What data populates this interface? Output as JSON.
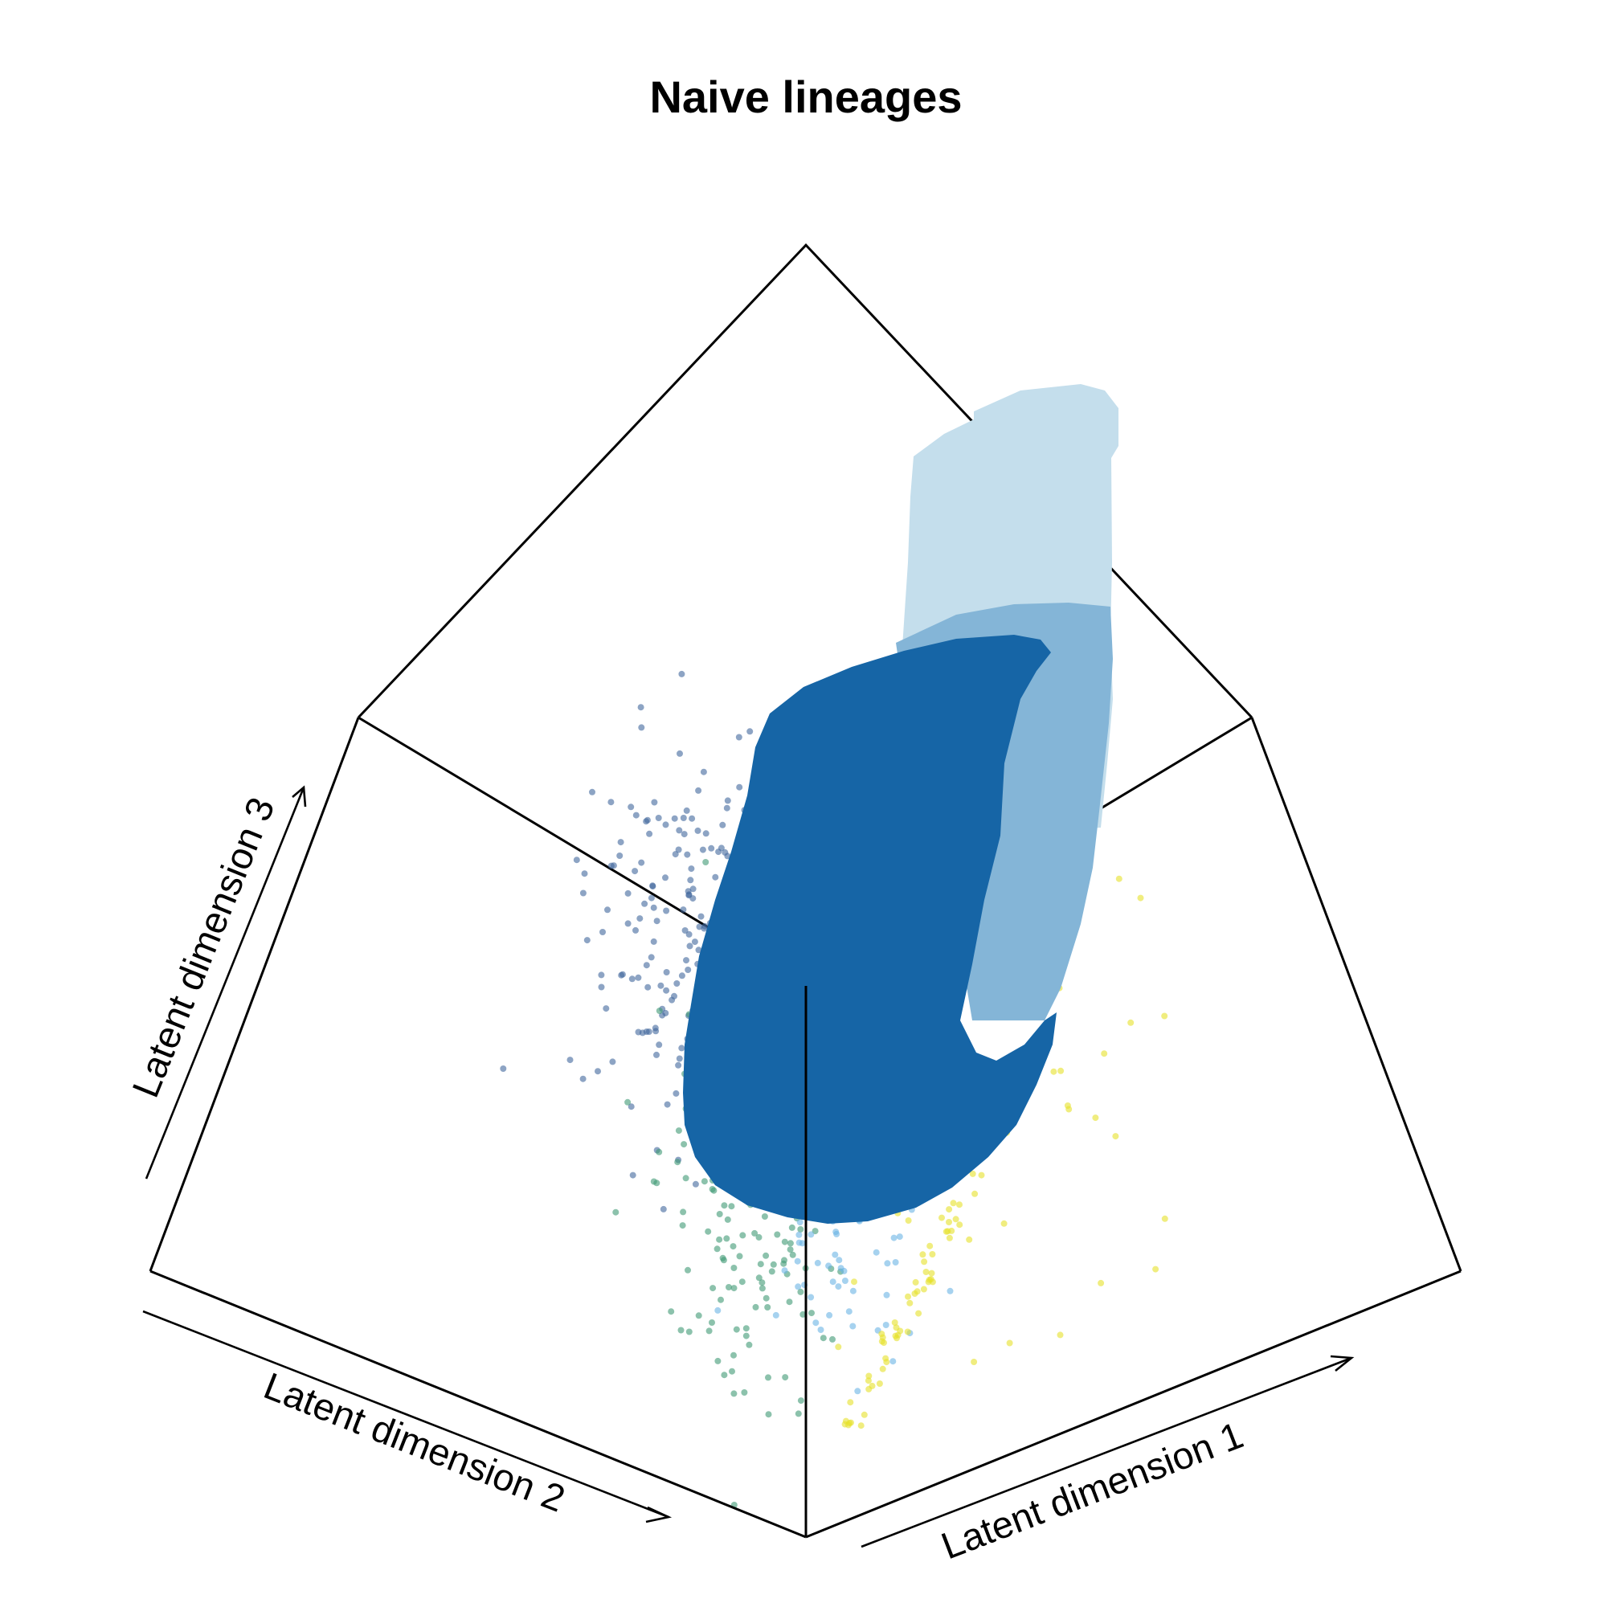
{
  "chart_data": {
    "type": "scatter",
    "title": "Naive lineages",
    "axes": {
      "x": "Latent dimension 1",
      "y": "Latent dimension 2",
      "z": "Latent dimension 3"
    },
    "grid": false,
    "series": [
      {
        "color": "#41689c",
        "point_count": 240
      },
      {
        "color": "#3f9a74",
        "point_count": 180
      },
      {
        "color": "#6ab4e4",
        "point_count": 60
      },
      {
        "color": "#e6e12a",
        "point_count": 130
      }
    ],
    "surfaces": [
      {
        "color": "#c4deec"
      },
      {
        "color": "#84b5d7"
      },
      {
        "color": "#1665a6"
      }
    ]
  }
}
